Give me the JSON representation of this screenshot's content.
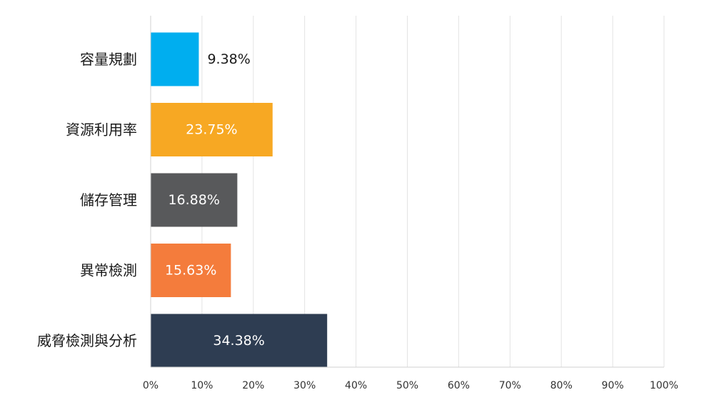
{
  "chart_data": {
    "type": "bar",
    "orientation": "horizontal",
    "categories": [
      "容量規劃",
      "資源利用率",
      "儲存管理",
      "異常檢測",
      "威脅檢測與分析"
    ],
    "values": [
      9.38,
      23.75,
      16.88,
      15.63,
      34.38
    ],
    "value_labels": [
      "9.38%",
      "23.75%",
      "16.88%",
      "15.63%",
      "34.38%"
    ],
    "bar_colors": [
      "#00aeef",
      "#f7a823",
      "#58595b",
      "#f47c3c",
      "#2e3d52"
    ],
    "value_label_colors": [
      "#1a1a1a",
      "#ffffff",
      "#ffffff",
      "#ffffff",
      "#ffffff"
    ],
    "value_label_position": [
      "outside",
      "inside",
      "inside",
      "inside",
      "inside"
    ],
    "x_ticks": [
      "0%",
      "10%",
      "20%",
      "30%",
      "40%",
      "50%",
      "60%",
      "70%",
      "80%",
      "90%",
      "100%"
    ],
    "xlim": [
      0,
      100
    ],
    "grid": true,
    "legend": false,
    "title": "",
    "xlabel": "",
    "ylabel": ""
  }
}
